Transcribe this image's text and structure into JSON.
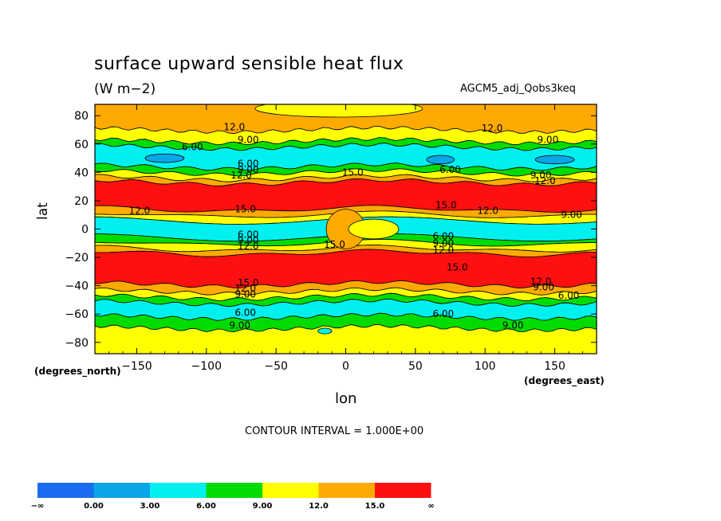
{
  "header": {
    "title": "surface upward sensible heat flux",
    "units": "(W m−2)",
    "run_name": "AGCM5_adj_Qobs3keq"
  },
  "footer": {
    "contour_interval": "CONTOUR INTERVAL = 1.000E+00"
  },
  "chart_data": {
    "type": "heatmap",
    "title": "surface upward sensible heat flux",
    "subtitle": "(W m−2)",
    "xlabel": "lon",
    "xunit": "(degrees_east)",
    "ylabel": "lat",
    "yunit": "(degrees_north)",
    "xlim": [
      -180,
      180
    ],
    "ylim": [
      -88,
      88
    ],
    "xticks": [
      -150,
      -100,
      -50,
      0,
      50,
      100,
      150
    ],
    "xtick_labels": [
      "−150",
      "−100",
      "−50",
      "0",
      "50",
      "100",
      "150"
    ],
    "yticks": [
      80,
      60,
      40,
      20,
      0,
      -20,
      -40,
      -60,
      -80
    ],
    "ytick_labels": [
      "80",
      "60",
      "40",
      "20",
      "0",
      "−20",
      "−40",
      "−60",
      "−80"
    ],
    "grid": false,
    "colorbar": {
      "levels": [
        -1000,
        0,
        3,
        6,
        9,
        12,
        15,
        1000
      ],
      "tick_labels": [
        "−∞",
        "0.00",
        "3.00",
        "6.00",
        "9.00",
        "12.0",
        "15.0",
        "∞"
      ],
      "colors": [
        "#1a6cf0",
        "#0aa6e8",
        "#00f0f0",
        "#00dc00",
        "#ffff00",
        "#ffaa00",
        "#ff1010"
      ]
    },
    "bands": [
      {
        "lat_top": 88,
        "lat_bottom": 70,
        "value": 12
      },
      {
        "lat_top": 70,
        "lat_bottom": 62,
        "value": 9
      },
      {
        "lat_top": 62,
        "lat_bottom": 58,
        "value": 6
      },
      {
        "lat_top": 58,
        "lat_bottom": 44,
        "value": 3
      },
      {
        "lat_top": 44,
        "lat_bottom": 40,
        "value": 6
      },
      {
        "lat_top": 40,
        "lat_bottom": 36,
        "value": 9
      },
      {
        "lat_top": 36,
        "lat_bottom": 33,
        "value": 12
      },
      {
        "lat_top": 33,
        "lat_bottom": 14,
        "value": 15
      },
      {
        "lat_top": 14,
        "lat_bottom": 10,
        "value": 12
      },
      {
        "lat_top": 10,
        "lat_bottom": 6,
        "value": 9
      },
      {
        "lat_top": 6,
        "lat_bottom": -6,
        "value": 3
      },
      {
        "lat_top": -6,
        "lat_bottom": -10,
        "value": 6
      },
      {
        "lat_top": -10,
        "lat_bottom": -14,
        "value": 9
      },
      {
        "lat_top": -14,
        "lat_bottom": -17,
        "value": 12
      },
      {
        "lat_top": -17,
        "lat_bottom": -39,
        "value": 15
      },
      {
        "lat_top": -39,
        "lat_bottom": -44,
        "value": 12
      },
      {
        "lat_top": -44,
        "lat_bottom": -48,
        "value": 9
      },
      {
        "lat_top": -48,
        "lat_bottom": -52,
        "value": 6
      },
      {
        "lat_top": -52,
        "lat_bottom": -62,
        "value": 3
      },
      {
        "lat_top": -62,
        "lat_bottom": -70,
        "value": 6
      },
      {
        "lat_top": -70,
        "lat_bottom": -88,
        "value": 9
      }
    ],
    "features": [
      {
        "lon_center": -130,
        "lat_center": 50,
        "lon_halfwidth": 14,
        "lat_halfwidth": 3,
        "value": 0
      },
      {
        "lon_center": 68,
        "lat_center": 49,
        "lon_halfwidth": 10,
        "lat_halfwidth": 3,
        "value": 0
      },
      {
        "lon_center": 150,
        "lat_center": 49,
        "lon_halfwidth": 14,
        "lat_halfwidth": 3,
        "value": 0
      },
      {
        "lon_center": 0,
        "lat_center": 0,
        "lon_halfwidth": 14,
        "lat_halfwidth": 14,
        "value": 12
      },
      {
        "lon_center": 20,
        "lat_center": 0,
        "lon_halfwidth": 18,
        "lat_halfwidth": 7,
        "value": 9
      },
      {
        "lon_center": -5,
        "lat_center": 85,
        "lon_halfwidth": 60,
        "lat_halfwidth": 6,
        "value": 9
      },
      {
        "lon_center": -15,
        "lat_center": -72,
        "lon_halfwidth": 5,
        "lat_halfwidth": 2,
        "value": 3
      }
    ],
    "contour_labels": [
      {
        "text": "12.0",
        "lon": -80,
        "lat": 72
      },
      {
        "text": "9.00",
        "lon": -70,
        "lat": 63
      },
      {
        "text": "6.00",
        "lon": -110,
        "lat": 58
      },
      {
        "text": "6.00",
        "lon": -70,
        "lat": 46
      },
      {
        "text": "9.00",
        "lon": -70,
        "lat": 42
      },
      {
        "text": "12.0",
        "lon": -75,
        "lat": 38
      },
      {
        "text": "15.0",
        "lon": 5,
        "lat": 40
      },
      {
        "text": "12.0",
        "lon": 105,
        "lat": 71
      },
      {
        "text": "9.00",
        "lon": 145,
        "lat": 63
      },
      {
        "text": "6.00",
        "lon": 75,
        "lat": 42
      },
      {
        "text": "9.00",
        "lon": 140,
        "lat": 38
      },
      {
        "text": "12.0",
        "lon": 143,
        "lat": 34
      },
      {
        "text": "15.0",
        "lon": 72,
        "lat": 17
      },
      {
        "text": "12.0",
        "lon": 102,
        "lat": 13
      },
      {
        "text": "9.00",
        "lon": 162,
        "lat": 10
      },
      {
        "text": "12.0",
        "lon": -148,
        "lat": 13
      },
      {
        "text": "15.0",
        "lon": -72,
        "lat": 14
      },
      {
        "text": "6.00",
        "lon": -70,
        "lat": -4
      },
      {
        "text": "9.00",
        "lon": -70,
        "lat": -8
      },
      {
        "text": "12.0",
        "lon": -70,
        "lat": -12
      },
      {
        "text": "15.0",
        "lon": -8,
        "lat": -11
      },
      {
        "text": "6.00",
        "lon": 70,
        "lat": -5
      },
      {
        "text": "9.00",
        "lon": 70,
        "lat": -10
      },
      {
        "text": "12.0",
        "lon": 70,
        "lat": -15
      },
      {
        "text": "15.0",
        "lon": 80,
        "lat": -27
      },
      {
        "text": "15.0",
        "lon": -70,
        "lat": -38
      },
      {
        "text": "12.0",
        "lon": -72,
        "lat": -42
      },
      {
        "text": "9.00",
        "lon": -72,
        "lat": -46
      },
      {
        "text": "12.0",
        "lon": 140,
        "lat": -37
      },
      {
        "text": "9.00",
        "lon": 142,
        "lat": -41
      },
      {
        "text": "6.00",
        "lon": 160,
        "lat": -47
      },
      {
        "text": "6.00",
        "lon": -72,
        "lat": -59
      },
      {
        "text": "9.00",
        "lon": -76,
        "lat": -68
      },
      {
        "text": "6.00",
        "lon": 70,
        "lat": -60
      },
      {
        "text": "9.00",
        "lon": 120,
        "lat": -68
      }
    ]
  }
}
